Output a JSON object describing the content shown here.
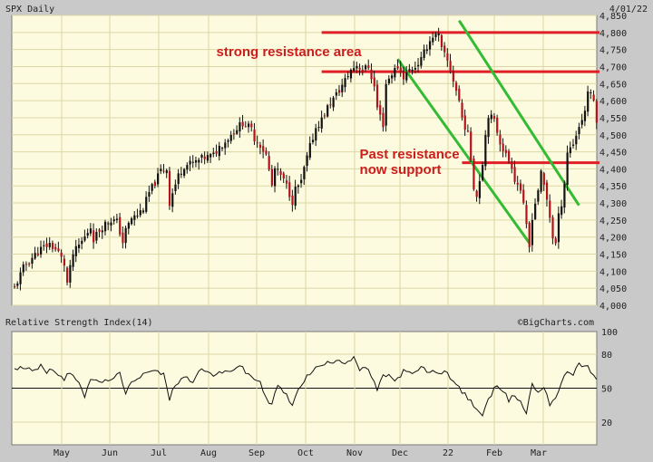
{
  "chart_data": {
    "type": "candlestick",
    "symbol_label": "SPX Daily",
    "date_label": "4/01/22",
    "credit": "©BigCharts.com",
    "price_axis": {
      "min": 4000,
      "max": 4850,
      "ticks": [
        "4,000",
        "4,050",
        "4,100",
        "4,150",
        "4,200",
        "4,250",
        "4,300",
        "4,350",
        "4,400",
        "4,450",
        "4,500",
        "4,550",
        "4,600",
        "4,650",
        "4,700",
        "4,750",
        "4,800",
        "4,850"
      ]
    },
    "months": [
      "May",
      "Jun",
      "Jul",
      "Aug",
      "Sep",
      "Oct",
      "Nov",
      "Dec",
      "22",
      "Feb",
      "Mar"
    ],
    "price_path": [
      [
        0,
        4050
      ],
      [
        3,
        4110
      ],
      [
        6,
        4140
      ],
      [
        9,
        4165
      ],
      [
        12,
        4180
      ],
      [
        15,
        4155
      ],
      [
        17,
        4120
      ],
      [
        18,
        4065
      ],
      [
        20,
        4150
      ],
      [
        22,
        4175
      ],
      [
        24,
        4200
      ],
      [
        26,
        4230
      ],
      [
        27,
        4195
      ],
      [
        29,
        4220
      ],
      [
        31,
        4240
      ],
      [
        33,
        4250
      ],
      [
        35,
        4245
      ],
      [
        37,
        4185
      ],
      [
        38,
        4220
      ],
      [
        40,
        4255
      ],
      [
        42,
        4265
      ],
      [
        44,
        4285
      ],
      [
        46,
        4330
      ],
      [
        48,
        4360
      ],
      [
        50,
        4395
      ],
      [
        52,
        4400
      ],
      [
        53,
        4300
      ],
      [
        54,
        4330
      ],
      [
        56,
        4380
      ],
      [
        58,
        4410
      ],
      [
        60,
        4415
      ],
      [
        62,
        4420
      ],
      [
        64,
        4430
      ],
      [
        66,
        4435
      ],
      [
        68,
        4440
      ],
      [
        70,
        4465
      ],
      [
        72,
        4480
      ],
      [
        74,
        4500
      ],
      [
        76,
        4520
      ],
      [
        78,
        4535
      ],
      [
        79,
        4530
      ],
      [
        81,
        4515
      ],
      [
        82,
        4490
      ],
      [
        84,
        4470
      ],
      [
        86,
        4440
      ],
      [
        87,
        4395
      ],
      [
        88,
        4350
      ],
      [
        89,
        4400
      ],
      [
        91,
        4380
      ],
      [
        93,
        4350
      ],
      [
        95,
        4305
      ],
      [
        96,
        4340
      ],
      [
        98,
        4360
      ],
      [
        99,
        4400
      ],
      [
        101,
        4465
      ],
      [
        103,
        4520
      ],
      [
        105,
        4545
      ],
      [
        107,
        4580
      ],
      [
        109,
        4605
      ],
      [
        111,
        4630
      ],
      [
        113,
        4660
      ],
      [
        115,
        4690
      ],
      [
        117,
        4705
      ],
      [
        119,
        4690
      ],
      [
        121,
        4700
      ],
      [
        123,
        4640
      ],
      [
        124,
        4580
      ],
      [
        126,
        4530
      ],
      [
        127,
        4650
      ],
      [
        129,
        4680
      ],
      [
        131,
        4700
      ],
      [
        133,
        4670
      ],
      [
        135,
        4690
      ],
      [
        137,
        4700
      ],
      [
        139,
        4720
      ],
      [
        141,
        4760
      ],
      [
        143,
        4790
      ],
      [
        145,
        4790
      ],
      [
        146,
        4750
      ],
      [
        148,
        4715
      ],
      [
        150,
        4660
      ],
      [
        152,
        4600
      ],
      [
        153,
        4550
      ],
      [
        155,
        4500
      ],
      [
        156,
        4430
      ],
      [
        157,
        4350
      ],
      [
        158,
        4320
      ],
      [
        159,
        4370
      ],
      [
        160,
        4420
      ],
      [
        161,
        4500
      ],
      [
        162,
        4560
      ],
      [
        164,
        4540
      ],
      [
        166,
        4480
      ],
      [
        168,
        4440
      ],
      [
        170,
        4410
      ],
      [
        171,
        4370
      ],
      [
        173,
        4340
      ],
      [
        174,
        4290
      ],
      [
        175,
        4230
      ],
      [
        176,
        4170
      ],
      [
        177,
        4260
      ],
      [
        178,
        4300
      ],
      [
        179,
        4340
      ],
      [
        180,
        4385
      ],
      [
        181,
        4350
      ],
      [
        182,
        4310
      ],
      [
        183,
        4260
      ],
      [
        184,
        4200
      ],
      [
        185,
        4180
      ],
      [
        186,
        4260
      ],
      [
        187,
        4300
      ],
      [
        188,
        4360
      ],
      [
        189,
        4450
      ],
      [
        191,
        4475
      ],
      [
        193,
        4525
      ],
      [
        195,
        4570
      ],
      [
        196,
        4630
      ],
      [
        198,
        4600
      ],
      [
        199,
        4545
      ]
    ],
    "lines": [
      {
        "kind": "resistance",
        "price": 4800,
        "x0": 105,
        "x1": 200
      },
      {
        "kind": "resistance",
        "price": 4685,
        "x0": 105,
        "x1": 200
      },
      {
        "kind": "support",
        "price": 4418,
        "x0": 153,
        "x1": 200
      },
      {
        "kind": "channel",
        "p0": [
          131,
          4722
        ],
        "p1": [
          176,
          4183
        ]
      },
      {
        "kind": "channel",
        "p0": [
          152,
          4835
        ],
        "p1": [
          193,
          4293
        ]
      }
    ],
    "annotations": [
      {
        "text": "strong resistance area",
        "x": 69,
        "price": 4730
      },
      {
        "text": "Past resistance",
        "x": 118,
        "price": 4430
      },
      {
        "text": "now support",
        "x": 118,
        "price": 4385
      }
    ],
    "rsi": {
      "title": "Relative Strength Index(14)",
      "min": 0,
      "max": 100,
      "ticks": [
        "20",
        "50",
        "80",
        "100"
      ],
      "reference": 50,
      "values": [
        [
          0,
          66
        ],
        [
          4,
          69
        ],
        [
          7,
          66
        ],
        [
          9,
          70
        ],
        [
          11,
          64
        ],
        [
          13,
          68
        ],
        [
          15,
          62
        ],
        [
          17,
          57
        ],
        [
          19,
          65
        ],
        [
          22,
          56
        ],
        [
          24,
          43
        ],
        [
          26,
          56
        ],
        [
          28,
          58
        ],
        [
          30,
          54
        ],
        [
          33,
          59
        ],
        [
          36,
          62
        ],
        [
          38,
          44
        ],
        [
          40,
          56
        ],
        [
          43,
          61
        ],
        [
          46,
          66
        ],
        [
          49,
          64
        ],
        [
          51,
          62
        ],
        [
          53,
          40
        ],
        [
          55,
          54
        ],
        [
          58,
          60
        ],
        [
          61,
          56
        ],
        [
          63,
          67
        ],
        [
          66,
          64
        ],
        [
          68,
          62
        ],
        [
          71,
          63
        ],
        [
          74,
          66
        ],
        [
          77,
          70
        ],
        [
          79,
          64
        ],
        [
          82,
          58
        ],
        [
          84,
          56
        ],
        [
          86,
          40
        ],
        [
          88,
          37
        ],
        [
          90,
          52
        ],
        [
          93,
          44
        ],
        [
          95,
          33
        ],
        [
          97,
          50
        ],
        [
          99,
          57
        ],
        [
          102,
          66
        ],
        [
          105,
          70
        ],
        [
          108,
          73
        ],
        [
          111,
          76
        ],
        [
          113,
          72
        ],
        [
          116,
          78
        ],
        [
          118,
          66
        ],
        [
          121,
          67
        ],
        [
          124,
          48
        ],
        [
          126,
          60
        ],
        [
          128,
          63
        ],
        [
          130,
          55
        ],
        [
          133,
          65
        ],
        [
          136,
          62
        ],
        [
          139,
          68
        ],
        [
          142,
          64
        ],
        [
          145,
          64
        ],
        [
          148,
          64
        ],
        [
          150,
          56
        ],
        [
          152,
          50
        ],
        [
          154,
          44
        ],
        [
          156,
          38
        ],
        [
          158,
          32
        ],
        [
          160,
          26
        ],
        [
          162,
          39
        ],
        [
          165,
          54
        ],
        [
          167,
          48
        ],
        [
          169,
          39
        ],
        [
          171,
          44
        ],
        [
          173,
          38
        ],
        [
          175,
          28
        ],
        [
          177,
          54
        ],
        [
          179,
          46
        ],
        [
          181,
          52
        ],
        [
          183,
          36
        ],
        [
          185,
          42
        ],
        [
          187,
          54
        ],
        [
          189,
          65
        ],
        [
          191,
          63
        ],
        [
          193,
          72
        ],
        [
          196,
          68
        ],
        [
          198,
          61
        ],
        [
          199,
          56
        ]
      ]
    }
  }
}
